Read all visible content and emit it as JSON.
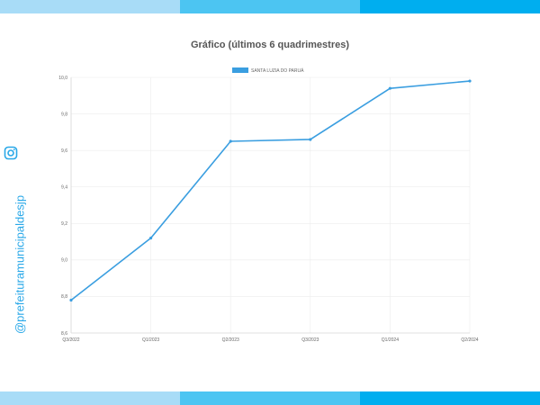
{
  "header": {
    "title": "Gráfico (últimos 6 quadrimestres)",
    "band_colors": [
      "#a8dcf7",
      "#4cc5f2",
      "#00aeef"
    ]
  },
  "social": {
    "handle": "@prefeituramunicipaldesjp",
    "icon": "instagram-icon",
    "color": "#29a8e8"
  },
  "chart_data": {
    "type": "line",
    "title": "Gráfico (últimos 6 quadrimestres)",
    "categories": [
      "Q3/2022",
      "Q1/2023",
      "Q2/2023",
      "Q3/2023",
      "Q1/2024",
      "Q2/2024"
    ],
    "series": [
      {
        "name": "SANTA LUZIA DO PARUÁ",
        "color": "#3a9ee0",
        "values": [
          8.78,
          9.12,
          9.65,
          9.66,
          9.94,
          9.98
        ]
      }
    ],
    "ylim": [
      8.6,
      10.0
    ],
    "yticks": [
      "10,0",
      "9,8",
      "9,6",
      "9,4",
      "9,2",
      "9,0",
      "8,8",
      "8,6"
    ],
    "ytick_values": [
      10.0,
      9.8,
      9.6,
      9.4,
      9.2,
      9.0,
      8.8,
      8.6
    ],
    "grid": true,
    "legend": "top-center"
  }
}
